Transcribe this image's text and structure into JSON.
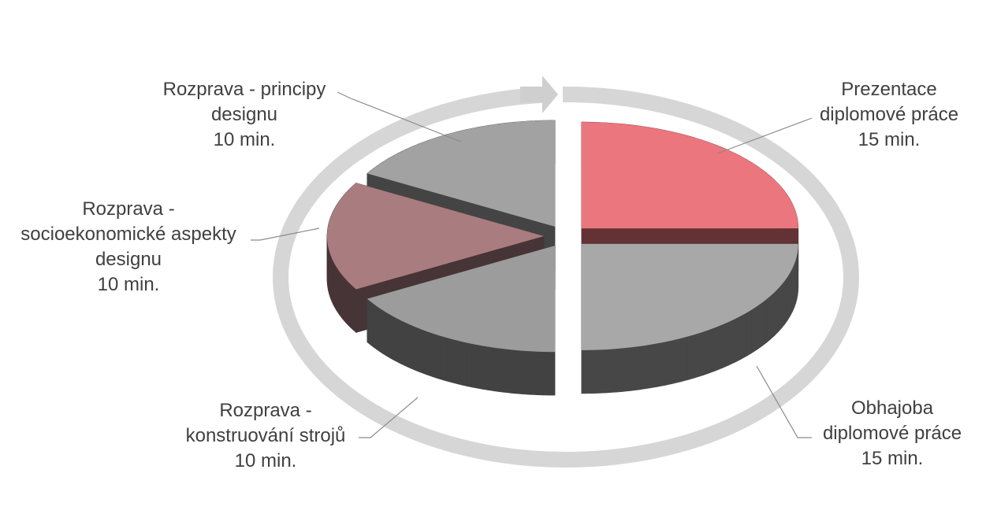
{
  "chart_data": {
    "type": "pie3d",
    "categories": [
      "Prezentace diplomové práce",
      "Obhajoba diplomové práce",
      "Rozprava - konstruování strojů",
      "Rozprava - socioekonomické aspekty designu",
      "Rozprava - principy designu"
    ],
    "values": [
      15,
      15,
      10,
      10,
      10
    ],
    "value_labels": [
      "15 min.",
      "15 min.",
      "10 min.",
      "10 min.",
      "10 min."
    ],
    "colors": [
      "#ec767e",
      "#a8a8a8",
      "#9c9c9c",
      "#a97c80",
      "#a2a2a2"
    ]
  }
}
